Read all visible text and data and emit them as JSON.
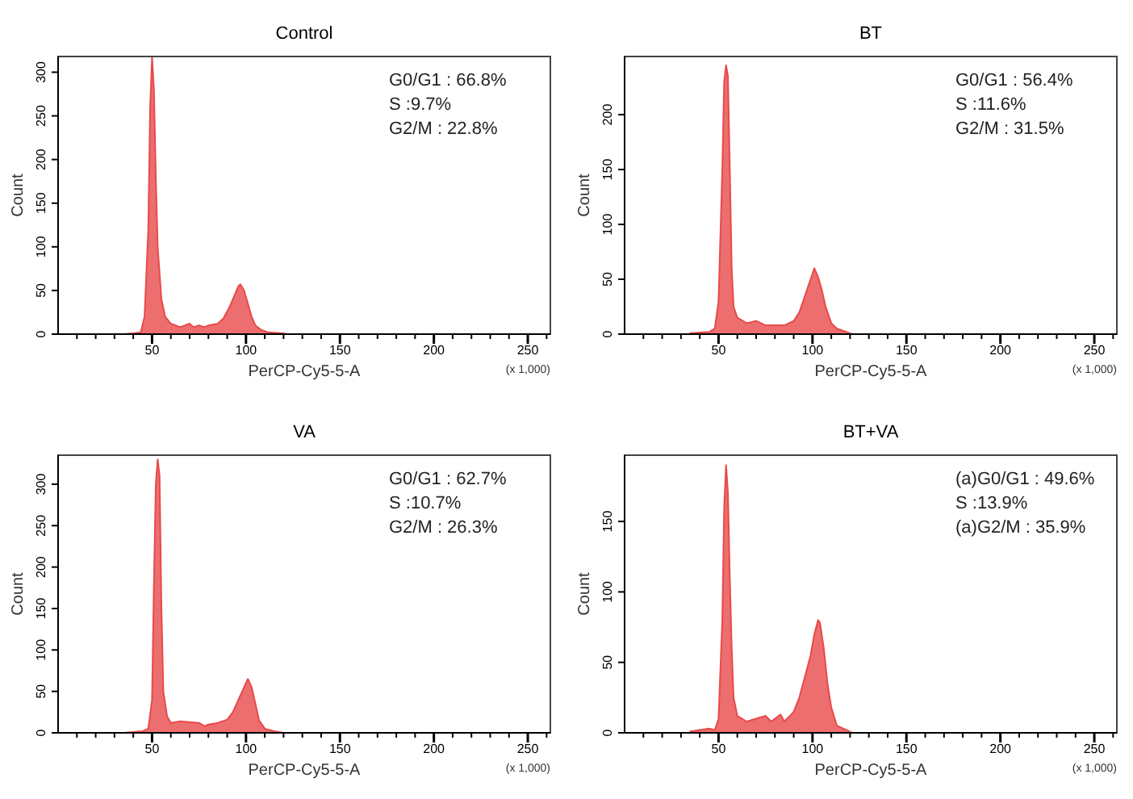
{
  "chart_data": [
    {
      "type": "area",
      "title": "Control",
      "xlabel": "PerCP-Cy5-5-A",
      "ylabel": "Count",
      "xlim": [
        0,
        262
      ],
      "ylim": [
        0,
        318
      ],
      "xticks": [
        {
          "value": 10,
          "label": null
        },
        {
          "value": 20,
          "label": null
        },
        {
          "value": 30,
          "label": null
        },
        {
          "value": 40,
          "label": null
        },
        50,
        {
          "value": 60,
          "label": null
        },
        {
          "value": 70,
          "label": null
        },
        {
          "value": 80,
          "label": null
        },
        {
          "value": 90,
          "label": null
        },
        100,
        {
          "value": 110,
          "label": null
        },
        {
          "value": 120,
          "label": null
        },
        {
          "value": 130,
          "label": null
        },
        {
          "value": 140,
          "label": null
        },
        150,
        {
          "value": 160,
          "label": null
        },
        {
          "value": 170,
          "label": null
        },
        {
          "value": 180,
          "label": null
        },
        {
          "value": 190,
          "label": null
        },
        200,
        {
          "value": 210,
          "label": null
        },
        {
          "value": 220,
          "label": null
        },
        {
          "value": 230,
          "label": null
        },
        {
          "value": 240,
          "label": null
        },
        250,
        {
          "value": 260,
          "label": null
        }
      ],
      "yticks": [
        0,
        50,
        100,
        150,
        200,
        250,
        300
      ],
      "annotations": [
        "G0/G1 : 66.8%",
        "S :9.7%",
        "G2/M : 22.8%",
        "(x 1,000)"
      ],
      "series": [
        {
          "color": "#e84a4a",
          "x": [
            35,
            40,
            44,
            46,
            48,
            49,
            50,
            51,
            52,
            53,
            55,
            57,
            60,
            65,
            70,
            72,
            75,
            78,
            80,
            85,
            88,
            91,
            94,
            96,
            97,
            99,
            101,
            103,
            105,
            108,
            112,
            120,
            121
          ],
          "values": [
            0,
            1,
            2,
            20,
            120,
            260,
            318,
            280,
            180,
            100,
            40,
            20,
            12,
            8,
            12,
            8,
            10,
            8,
            10,
            12,
            18,
            30,
            45,
            55,
            57,
            50,
            35,
            20,
            10,
            5,
            2,
            1,
            0
          ]
        }
      ]
    },
    {
      "type": "area",
      "title": "BT",
      "xlabel": "PerCP-Cy5-5-A",
      "ylabel": "Count",
      "xlim": [
        0,
        262
      ],
      "ylim": [
        0,
        253
      ],
      "xticks": [
        {
          "value": 10,
          "label": null
        },
        {
          "value": 20,
          "label": null
        },
        {
          "value": 30,
          "label": null
        },
        {
          "value": 40,
          "label": null
        },
        50,
        {
          "value": 60,
          "label": null
        },
        {
          "value": 70,
          "label": null
        },
        {
          "value": 80,
          "label": null
        },
        {
          "value": 90,
          "label": null
        },
        100,
        {
          "value": 110,
          "label": null
        },
        {
          "value": 120,
          "label": null
        },
        {
          "value": 130,
          "label": null
        },
        {
          "value": 140,
          "label": null
        },
        150,
        {
          "value": 160,
          "label": null
        },
        {
          "value": 170,
          "label": null
        },
        {
          "value": 180,
          "label": null
        },
        {
          "value": 190,
          "label": null
        },
        200,
        {
          "value": 210,
          "label": null
        },
        {
          "value": 220,
          "label": null
        },
        {
          "value": 230,
          "label": null
        },
        {
          "value": 240,
          "label": null
        },
        250,
        {
          "value": 260,
          "label": null
        }
      ],
      "yticks": [
        0,
        50,
        100,
        150,
        200
      ],
      "annotations": [
        "G0/G1 : 56.4%",
        "S :11.6%",
        "G2/M : 31.5%",
        "(x 1,000)"
      ],
      "series": [
        {
          "color": "#e84a4a",
          "x": [
            35,
            45,
            48,
            50,
            52,
            53,
            54,
            55,
            56,
            57,
            58,
            60,
            65,
            70,
            75,
            80,
            85,
            90,
            93,
            96,
            98,
            100,
            101,
            103,
            105,
            107,
            110,
            113,
            118,
            121
          ],
          "values": [
            1,
            2,
            5,
            30,
            150,
            230,
            245,
            235,
            150,
            60,
            25,
            15,
            10,
            12,
            8,
            8,
            8,
            12,
            20,
            35,
            45,
            55,
            60,
            52,
            40,
            25,
            10,
            5,
            2,
            0
          ]
        }
      ]
    },
    {
      "type": "area",
      "title": "VA",
      "xlabel": "PerCP-Cy5-5-A",
      "ylabel": "Count",
      "xlim": [
        0,
        262
      ],
      "ylim": [
        0,
        335
      ],
      "xticks": [
        {
          "value": 10,
          "label": null
        },
        {
          "value": 20,
          "label": null
        },
        {
          "value": 30,
          "label": null
        },
        {
          "value": 40,
          "label": null
        },
        50,
        {
          "value": 60,
          "label": null
        },
        {
          "value": 70,
          "label": null
        },
        {
          "value": 80,
          "label": null
        },
        {
          "value": 90,
          "label": null
        },
        100,
        {
          "value": 110,
          "label": null
        },
        {
          "value": 120,
          "label": null
        },
        {
          "value": 130,
          "label": null
        },
        {
          "value": 140,
          "label": null
        },
        150,
        {
          "value": 160,
          "label": null
        },
        {
          "value": 170,
          "label": null
        },
        {
          "value": 180,
          "label": null
        },
        {
          "value": 190,
          "label": null
        },
        200,
        {
          "value": 210,
          "label": null
        },
        {
          "value": 220,
          "label": null
        },
        {
          "value": 230,
          "label": null
        },
        {
          "value": 240,
          "label": null
        },
        250,
        {
          "value": 260,
          "label": null
        }
      ],
      "yticks": [
        0,
        50,
        100,
        150,
        200,
        250,
        300
      ],
      "annotations": [
        "G0/G1 : 62.7%",
        "S :10.7%",
        "G2/M : 26.3%",
        "(x 1,000)"
      ],
      "series": [
        {
          "color": "#e84a4a",
          "x": [
            35,
            40,
            45,
            48,
            50,
            51,
            52,
            53,
            54,
            55,
            56,
            58,
            60,
            65,
            70,
            75,
            78,
            80,
            85,
            90,
            93,
            96,
            99,
            101,
            103,
            105,
            107,
            110,
            115,
            120
          ],
          "values": [
            0,
            1,
            2,
            5,
            40,
            180,
            300,
            330,
            310,
            150,
            50,
            20,
            12,
            14,
            13,
            12,
            8,
            10,
            12,
            16,
            25,
            40,
            55,
            65,
            55,
            35,
            15,
            5,
            2,
            0
          ]
        }
      ]
    },
    {
      "type": "area",
      "title": "BT+VA",
      "xlabel": "PerCP-Cy5-5-A",
      "ylabel": "Count",
      "xlim": [
        0,
        262
      ],
      "ylim": [
        0,
        197
      ],
      "xticks": [
        {
          "value": 10,
          "label": null
        },
        {
          "value": 20,
          "label": null
        },
        {
          "value": 30,
          "label": null
        },
        {
          "value": 40,
          "label": null
        },
        50,
        {
          "value": 60,
          "label": null
        },
        {
          "value": 70,
          "label": null
        },
        {
          "value": 80,
          "label": null
        },
        {
          "value": 90,
          "label": null
        },
        100,
        {
          "value": 110,
          "label": null
        },
        {
          "value": 120,
          "label": null
        },
        {
          "value": 130,
          "label": null
        },
        {
          "value": 140,
          "label": null
        },
        150,
        {
          "value": 160,
          "label": null
        },
        {
          "value": 170,
          "label": null
        },
        {
          "value": 180,
          "label": null
        },
        {
          "value": 190,
          "label": null
        },
        200,
        {
          "value": 210,
          "label": null
        },
        {
          "value": 220,
          "label": null
        },
        {
          "value": 230,
          "label": null
        },
        {
          "value": 240,
          "label": null
        },
        250,
        {
          "value": 260,
          "label": null
        }
      ],
      "yticks": [
        0,
        50,
        100,
        150
      ],
      "annotations": [
        "(a)G0/G1 : 49.6%",
        "S :13.9%",
        "(a)G2/M : 35.9%",
        "(x 1,000)"
      ],
      "series": [
        {
          "color": "#e84a4a",
          "x": [
            35,
            40,
            45,
            48,
            50,
            52,
            53,
            54,
            55,
            56,
            57,
            58,
            60,
            65,
            70,
            75,
            78,
            80,
            83,
            85,
            88,
            90,
            93,
            96,
            99,
            101,
            103,
            104,
            106,
            108,
            110,
            113,
            118,
            121
          ],
          "values": [
            1,
            2,
            3,
            2,
            10,
            80,
            160,
            190,
            170,
            110,
            60,
            25,
            12,
            8,
            10,
            12,
            8,
            10,
            13,
            8,
            12,
            15,
            25,
            40,
            55,
            70,
            80,
            78,
            60,
            35,
            18,
            5,
            2,
            0
          ]
        }
      ]
    }
  ]
}
